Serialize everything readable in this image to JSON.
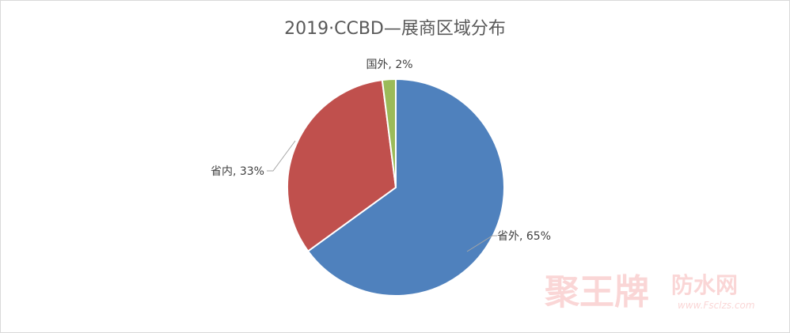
{
  "chart_data": {
    "type": "pie",
    "title": "2019·CCBD—展商区域分布",
    "slices": [
      {
        "label": "省外",
        "value": 65,
        "color": "#4f81bd",
        "text": "省外, 65%"
      },
      {
        "label": "省内",
        "value": 33,
        "color": "#c0504d",
        "text": "省内, 33%"
      },
      {
        "label": "国外",
        "value": 2,
        "color": "#9bbb59",
        "text": "国外, 2%"
      }
    ]
  },
  "watermark": {
    "brand": "聚王牌",
    "site": "防水网",
    "url": "www.Fsclzs.com"
  }
}
